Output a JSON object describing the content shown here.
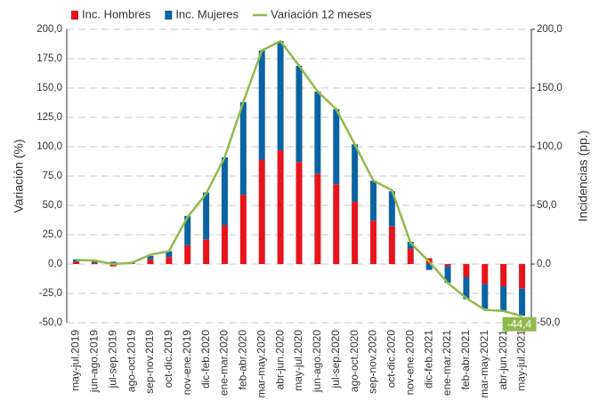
{
  "chart_data": {
    "type": "bar",
    "y_label": "Variación (%)",
    "y2_label": "Incidencias (pp.)",
    "categories": [
      "may-jul.2019",
      "jun-ago.2019",
      "jul-sep.2019",
      "ago-oct.2019",
      "sep-nov.2019",
      "oct-dic.2019",
      "nov-ene.2019",
      "dic-feb.2020",
      "ene-mar.2020",
      "feb-abr.2020",
      "mar-may.2020",
      "abr-jun.2020",
      "may-jul.2020",
      "jun-ago.2020",
      "jul-sep.2020",
      "ago-oct.2020",
      "sep-nov.2020",
      "oct-dic.2020",
      "nov-ene.2020",
      "dic-feb.2021",
      "ene-mar.2021",
      "feb-abr.2021",
      "mar-may.2021",
      "abr-jun.2021",
      "may-jul.2021"
    ],
    "series": [
      {
        "name": "Inc. Hombres",
        "type": "bar",
        "axis": "y2",
        "color": "#e8141c",
        "values": [
          2,
          1,
          -2,
          1,
          4,
          6,
          16,
          21,
          33,
          59,
          89,
          97,
          87,
          77,
          68,
          53,
          37,
          32,
          13,
          5,
          -2,
          -11,
          -17,
          -19,
          -21
        ]
      },
      {
        "name": "Inc. Mujeres",
        "type": "bar",
        "axis": "y2",
        "color": "#0a64a4",
        "values": [
          2,
          2,
          2,
          1,
          3,
          5,
          25,
          40,
          58,
          79,
          93,
          93,
          82,
          70,
          64,
          49,
          34,
          30,
          6,
          -5,
          -14,
          -19,
          -21,
          -21,
          -23
        ]
      },
      {
        "name": "Variación 12 meses",
        "type": "line",
        "axis": "y",
        "color": "#92b94c",
        "values": [
          3.5,
          3,
          0,
          1,
          8,
          11,
          40,
          60,
          91,
          138,
          182,
          190,
          169,
          147,
          132,
          102,
          71,
          63,
          18,
          2,
          -16,
          -29,
          -39,
          -40,
          -44.4
        ],
        "value_labels": [
          null,
          null,
          null,
          null,
          null,
          null,
          null,
          null,
          null,
          null,
          null,
          null,
          null,
          null,
          null,
          null,
          null,
          null,
          null,
          null,
          null,
          null,
          null,
          null,
          "-44,4"
        ]
      }
    ],
    "ylim": [
      -50,
      200
    ],
    "yticks": [
      {
        "value": -50,
        "label": "-50,0"
      },
      {
        "value": -25,
        "label": "-25,0"
      },
      {
        "value": 0,
        "label": "0,0"
      },
      {
        "value": 25,
        "label": "25,0"
      },
      {
        "value": 50,
        "label": "50,0"
      },
      {
        "value": 75,
        "label": "75,0"
      },
      {
        "value": 100,
        "label": "100,0"
      },
      {
        "value": 125,
        "label": "125,0"
      },
      {
        "value": 150,
        "label": "150,0"
      },
      {
        "value": 175,
        "label": "175,0"
      },
      {
        "value": 200,
        "label": "200,0"
      }
    ],
    "y2lim": [
      -50,
      200
    ],
    "y2ticks": [
      {
        "value": -50,
        "label": "-50,0"
      },
      {
        "value": 0,
        "label": "0,0"
      },
      {
        "value": 50,
        "label": "50,0"
      },
      {
        "value": 100,
        "label": "100,0"
      },
      {
        "value": 150,
        "label": "150,0"
      },
      {
        "value": 200,
        "label": "200,0"
      }
    ],
    "grid": true,
    "legend": "top"
  }
}
